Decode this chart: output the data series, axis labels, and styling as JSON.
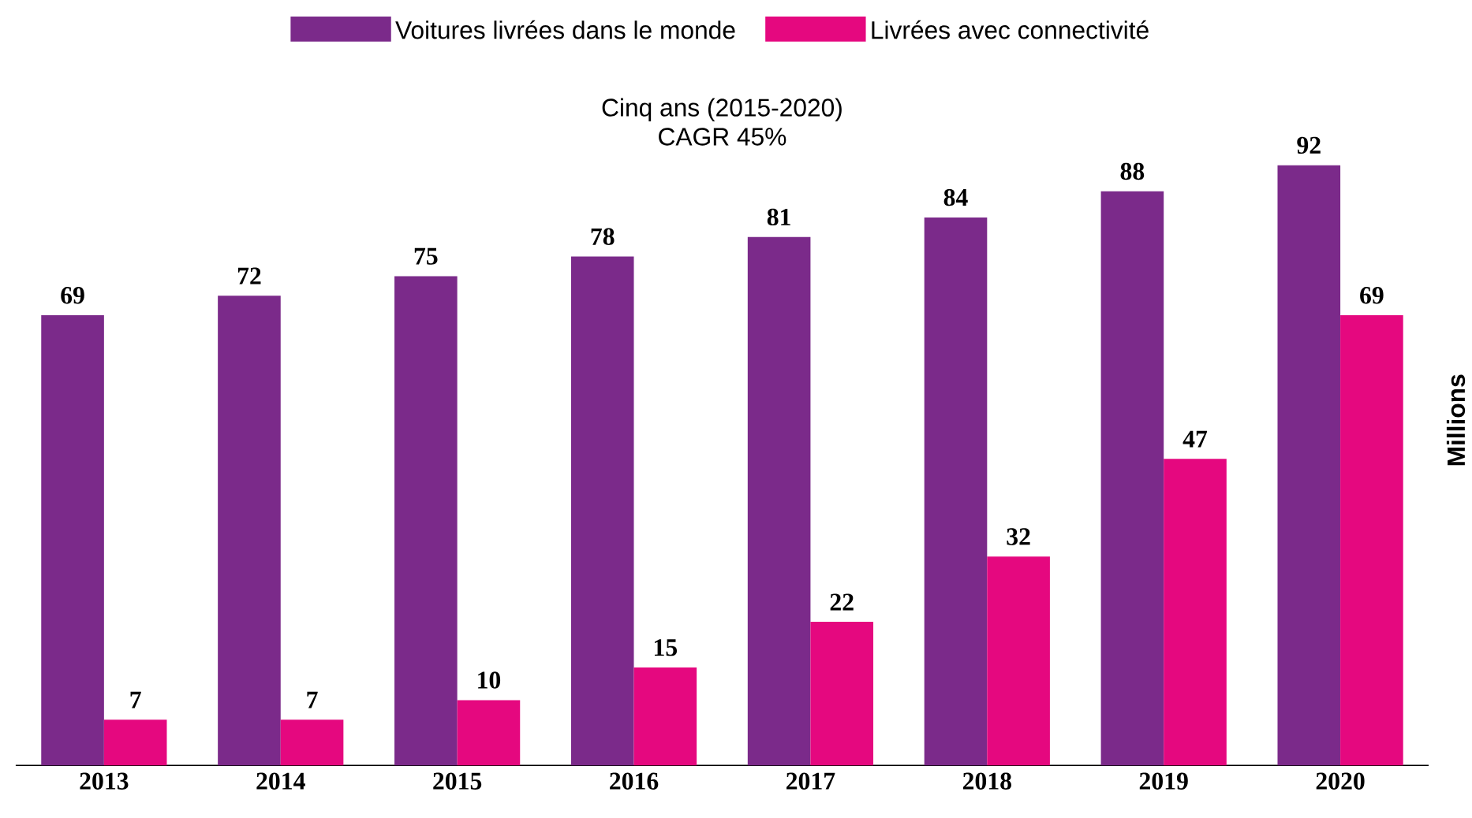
{
  "chart_data": {
    "type": "bar",
    "categories": [
      "2013",
      "2014",
      "2015",
      "2016",
      "2017",
      "2018",
      "2019",
      "2020"
    ],
    "series": [
      {
        "name": "Voitures livrées dans le monde",
        "color": "#7b2a8a",
        "values": [
          69,
          72,
          75,
          78,
          81,
          84,
          88,
          92
        ]
      },
      {
        "name": "Livrées avec connectivité",
        "color": "#e5087f",
        "values": [
          7,
          7,
          10,
          15,
          22,
          32,
          47,
          69
        ]
      }
    ],
    "ylabel": "Millions",
    "annotations": [
      "Cinq ans (2015-2020)",
      "CAGR 45%"
    ],
    "data_labels": true,
    "legend": "top"
  }
}
